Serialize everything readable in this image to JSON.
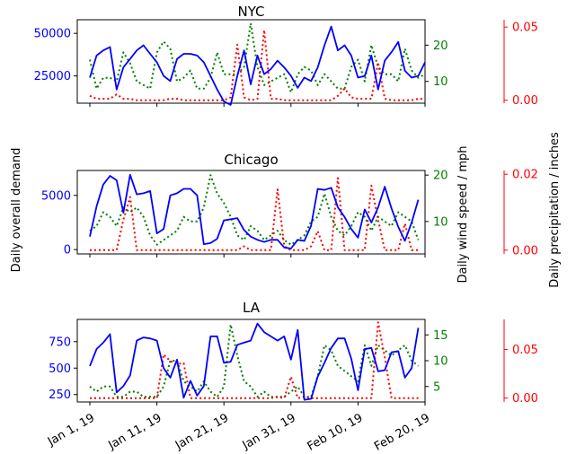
{
  "labels": {
    "ylabel_left": "Daily overall demand",
    "ylabel_mid": "Daily wind speed / mph",
    "ylabel_right": "Daily precipitation / inches"
  },
  "colors": {
    "demand": "#0000ff",
    "wind": "#008000",
    "precip": "#ff0000",
    "axis": "#000000"
  },
  "chart_data": [
    {
      "type": "line",
      "title": "NYC",
      "x_start": "2019-01-01",
      "x_ticks": [
        "Jan 1, 19",
        "Jan 11, 19",
        "Jan 21, 19",
        "Jan 31, 19",
        "Feb 10, 19",
        "Feb 20, 19"
      ],
      "demand": {
        "ylim": [
          9000,
          58000
        ],
        "yticks": [
          25000,
          50000
        ],
        "ytick_labels": [
          "25000",
          "50000"
        ],
        "values": [
          24000,
          37000,
          40000,
          42000,
          17000,
          30000,
          35000,
          40000,
          43000,
          38000,
          33000,
          25000,
          22000,
          35000,
          38000,
          38000,
          37000,
          33000,
          25000,
          17000,
          10000,
          8000,
          25000,
          40000,
          20000,
          37000,
          26000,
          29000,
          34000,
          30000,
          25000,
          18000,
          24000,
          22000,
          30000,
          43000,
          54000,
          40000,
          43000,
          37000,
          24000,
          25000,
          37000,
          17000,
          34000,
          39000,
          45000,
          28000,
          24000,
          25000,
          33000
        ]
      },
      "wind": {
        "ylim": [
          4,
          27
        ],
        "yticks": [
          10,
          20
        ],
        "ytick_labels": [
          "10",
          "20"
        ],
        "values": [
          16,
          8,
          11,
          11,
          10,
          18,
          15,
          10,
          9,
          8,
          18,
          21,
          19,
          10,
          11,
          13,
          8,
          8,
          11,
          18,
          12,
          12,
          12,
          14,
          26,
          14,
          9,
          10,
          11,
          12,
          7,
          12,
          14,
          13,
          9,
          12,
          10,
          8,
          8,
          14,
          16,
          10,
          20,
          14,
          12,
          12,
          10,
          19,
          13,
          11,
          12
        ]
      },
      "precip": {
        "ylim": [
          -0.002,
          0.055
        ],
        "yticks": [
          0.0,
          0.05
        ],
        "ytick_labels": [
          "0.00",
          "0.05"
        ],
        "values": [
          0.003,
          0.001,
          0.001,
          0.001,
          0.004,
          0.001,
          0.001,
          0.0,
          0.0,
          0.0,
          0.0,
          0.0,
          0.001,
          0.001,
          0.0,
          0.0,
          0.0,
          0.0,
          0.0,
          0.0,
          0.0,
          0.002,
          0.038,
          0.002,
          0.0,
          0.001,
          0.048,
          0.001,
          0.001,
          0.0,
          0.0,
          0.0,
          0.0,
          0.0,
          0.0,
          0.0,
          0.0,
          0.003,
          0.008,
          0.002,
          0.001,
          0.001,
          0.001,
          0.026,
          0.001,
          0.0,
          0.0,
          0.0,
          0.0,
          0.001,
          0.001
        ]
      }
    },
    {
      "type": "line",
      "title": "Chicago",
      "x_start": "2019-01-01",
      "x_ticks": [
        "Jan 1, 19",
        "Jan 11, 19",
        "Jan 21, 19",
        "Jan 31, 19",
        "Feb 10, 19",
        "Feb 20, 19"
      ],
      "demand": {
        "ylim": [
          -400,
          7300
        ],
        "yticks": [
          0,
          5000
        ],
        "ytick_labels": [
          "0",
          "5000"
        ],
        "values": [
          1200,
          4000,
          6000,
          6800,
          6400,
          3400,
          6900,
          5100,
          5200,
          5400,
          1500,
          1900,
          5000,
          5200,
          5600,
          5600,
          5000,
          500,
          600,
          1000,
          2700,
          2800,
          2900,
          1800,
          1200,
          900,
          700,
          900,
          900,
          200,
          100,
          900,
          800,
          2200,
          5600,
          5500,
          5700,
          3900,
          3000,
          1900,
          1100,
          3700,
          2500,
          3900,
          5800,
          3800,
          2100,
          800,
          2500,
          4600
        ]
      },
      "wind": {
        "ylim": [
          3,
          21
        ],
        "yticks": [
          10,
          20
        ],
        "ytick_labels": [
          "10",
          "20"
        ],
        "values": [
          8,
          9,
          12,
          11,
          9,
          13,
          12,
          13,
          11,
          7,
          5,
          6,
          7,
          8,
          11,
          10,
          10,
          13,
          20,
          16,
          14,
          11,
          7,
          6,
          9,
          8,
          6,
          7,
          8,
          6,
          5,
          6,
          7,
          10,
          11,
          16,
          11,
          8,
          7,
          9,
          12,
          11,
          8,
          11,
          10,
          9,
          12,
          11,
          10,
          6
        ]
      },
      "precip": {
        "ylim": [
          -0.001,
          0.021
        ],
        "yticks": [
          0.0,
          0.02
        ],
        "ytick_labels": [
          "0.00",
          "0.02"
        ],
        "values": [
          0.0,
          0.0,
          0.0,
          0.0,
          0.0,
          0.008,
          0.014,
          0.0,
          0.0,
          0.0,
          0.0,
          0.0,
          0.0,
          0.0,
          0.0,
          0.0,
          0.0,
          0.0,
          0.0,
          0.0,
          0.0,
          0.0,
          0.0,
          0.001,
          0.0,
          0.0,
          0.0,
          0.0,
          0.016,
          0.001,
          0.0,
          0.0,
          0.0,
          0.001,
          0.005,
          0.0,
          0.0,
          0.019,
          0.0,
          0.0,
          0.0,
          0.0,
          0.017,
          0.008,
          0.0,
          0.0,
          0.0,
          0.007,
          0.0,
          0.0
        ]
      }
    },
    {
      "type": "line",
      "title": "LA",
      "x_start": "2019-01-01",
      "x_ticks": [
        "Jan 1, 19",
        "Jan 11, 19",
        "Jan 21, 19",
        "Jan 31, 19",
        "Feb 10, 19",
        "Feb 20, 19"
      ],
      "demand": {
        "ylim": [
          180,
          960
        ],
        "yticks": [
          250,
          500,
          750
        ],
        "ytick_labels": [
          "250",
          "500",
          "750"
        ],
        "values": [
          520,
          680,
          740,
          820,
          270,
          330,
          430,
          760,
          790,
          780,
          760,
          500,
          410,
          580,
          220,
          380,
          240,
          330,
          800,
          800,
          550,
          560,
          720,
          740,
          760,
          920,
          840,
          800,
          760,
          800,
          580,
          860,
          200,
          210,
          420,
          550,
          690,
          780,
          780,
          590,
          290,
          680,
          690,
          470,
          480,
          650,
          660,
          410,
          500,
          880
        ]
      },
      "wind": {
        "ylim": [
          2,
          18
        ],
        "yticks": [
          5,
          10,
          15
        ],
        "ytick_labels": [
          "5",
          "10",
          "15"
        ],
        "values": [
          5,
          4,
          5,
          5,
          3,
          3,
          4,
          4,
          3,
          3,
          3,
          5,
          10,
          10,
          6,
          5,
          4,
          6,
          4,
          3,
          5,
          17,
          11,
          6,
          5,
          3,
          4,
          3,
          3,
          3,
          4,
          5,
          3,
          3,
          7,
          13,
          12,
          9,
          8,
          7,
          6,
          13,
          9,
          13,
          12,
          11,
          12,
          13,
          10,
          9
        ]
      },
      "precip": {
        "ylim": [
          -0.004,
          0.081
        ],
        "yticks": [
          0.0,
          0.05
        ],
        "ytick_labels": [
          "0.00",
          "0.05"
        ],
        "values": [
          0.0,
          0.0,
          0.0,
          0.0,
          0.0,
          0.0,
          0.0,
          0.0,
          0.0,
          0.0,
          0.0,
          0.045,
          0.038,
          0.035,
          0.036,
          0.0,
          0.0,
          0.0,
          0.0,
          0.0,
          0.0,
          0.0,
          0.0,
          0.0,
          0.0,
          0.0,
          0.0,
          0.0,
          0.001,
          0.0,
          0.022,
          0.0,
          0.001,
          0.0,
          0.0,
          0.0,
          0.0,
          0.0,
          0.0,
          0.0,
          0.0,
          0.0,
          0.0,
          0.078,
          0.042,
          0.0,
          0.0,
          0.0,
          0.0,
          0.0
        ]
      }
    }
  ]
}
